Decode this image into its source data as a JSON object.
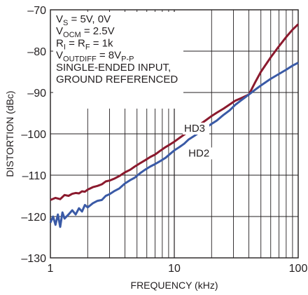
{
  "chart_data": {
    "type": "line",
    "xlabel": "FREQUENCY (kHz)",
    "ylabel": "DISTORTION (dBc)",
    "xscale": "log",
    "xlim": [
      1,
      100
    ],
    "ylim": [
      -130,
      -70
    ],
    "x_ticks": [
      {
        "value": 1,
        "label": "1"
      },
      {
        "value": 10,
        "label": "10"
      },
      {
        "value": 100,
        "label": "100"
      }
    ],
    "y_ticks": [
      {
        "value": -70,
        "label": "–70"
      },
      {
        "value": -80,
        "label": "–80"
      },
      {
        "value": -90,
        "label": "–90"
      },
      {
        "value": -100,
        "label": "–100"
      },
      {
        "value": -110,
        "label": "–110"
      },
      {
        "value": -120,
        "label": "–120"
      },
      {
        "value": -130,
        "label": "–130"
      }
    ],
    "grid": true,
    "conditions": [
      {
        "base": "V",
        "sub": "S",
        "rest": " = 5V, 0V"
      },
      {
        "base": "V",
        "sub": "OCM",
        "rest": " = 2.5V"
      },
      {
        "base": "R",
        "sub": "I",
        "rest": " = R",
        "sub2": "F",
        "rest2": " = 1k"
      },
      {
        "base": "V",
        "sub": "OUTDIFF",
        "rest": " = 8V",
        "sub2": "P-P",
        "rest2": ""
      },
      {
        "base": "SINGLE-ENDED INPUT,",
        "sub": "",
        "rest": ""
      },
      {
        "base": "GROUND REFERENCED",
        "sub": "",
        "rest": ""
      }
    ],
    "series": [
      {
        "name": "HD3",
        "color": "#8b1a2e",
        "label_at": [
          12,
          -99.5
        ],
        "x": [
          1,
          1.1,
          1.2,
          1.3,
          1.4,
          1.5,
          1.6,
          1.7,
          1.8,
          1.9,
          2,
          2.2,
          2.4,
          2.6,
          2.8,
          3,
          3.3,
          3.6,
          4,
          4.4,
          4.8,
          5.3,
          5.8,
          6.4,
          7,
          7.7,
          8.5,
          9.3,
          10,
          11,
          12,
          13,
          14.5,
          16,
          18,
          20,
          22,
          25,
          28,
          31,
          35,
          40,
          45,
          50,
          60,
          70,
          80,
          90,
          100
        ],
        "y": [
          -116,
          -115.5,
          -115.8,
          -114.8,
          -115,
          -114.5,
          -114.3,
          -114.4,
          -113.9,
          -114,
          -113.5,
          -112.9,
          -112.6,
          -112.2,
          -111.5,
          -111.3,
          -110.8,
          -110.2,
          -109.3,
          -108.7,
          -107.9,
          -107.1,
          -106.4,
          -105.6,
          -105,
          -104.1,
          -103.2,
          -102.5,
          -101.9,
          -101,
          -100.2,
          -99.5,
          -98.7,
          -97.8,
          -96.7,
          -95.7,
          -94.9,
          -93.9,
          -92.9,
          -92,
          -91.3,
          -90.5,
          -87.5,
          -85,
          -81.5,
          -78.8,
          -76.6,
          -74.8,
          -73.5
        ]
      },
      {
        "name": "HD2",
        "color": "#3a5aa6",
        "label_at": [
          13,
          -105.5
        ],
        "x": [
          1,
          1.05,
          1.1,
          1.15,
          1.2,
          1.25,
          1.3,
          1.4,
          1.5,
          1.6,
          1.7,
          1.8,
          1.9,
          2,
          2.2,
          2.4,
          2.6,
          2.8,
          3,
          3.3,
          3.6,
          4,
          4.4,
          4.8,
          5.3,
          5.8,
          6.4,
          7,
          7.7,
          8.5,
          9.3,
          10,
          11,
          12,
          13,
          14.5,
          16,
          18,
          20,
          22,
          25,
          28,
          31,
          35,
          40,
          45,
          50,
          60,
          70,
          80,
          90,
          100
        ],
        "y": [
          -121.5,
          -120,
          -122,
          -119.5,
          -122.5,
          -119,
          -120.5,
          -119.5,
          -118.5,
          -119.5,
          -118,
          -118.8,
          -117.2,
          -117.8,
          -116.8,
          -116.2,
          -116,
          -115,
          -114.6,
          -113.8,
          -113.2,
          -112,
          -111.2,
          -110.6,
          -109.5,
          -108.7,
          -107.9,
          -107.3,
          -106.6,
          -105.8,
          -104.8,
          -104,
          -103.2,
          -102.4,
          -101.4,
          -100.5,
          -99.6,
          -98.5,
          -97.6,
          -96.8,
          -95.4,
          -94.3,
          -93,
          -91.8,
          -90.5,
          -89.3,
          -88.3,
          -86.7,
          -85.5,
          -84.5,
          -83.5,
          -82.8
        ]
      }
    ]
  }
}
